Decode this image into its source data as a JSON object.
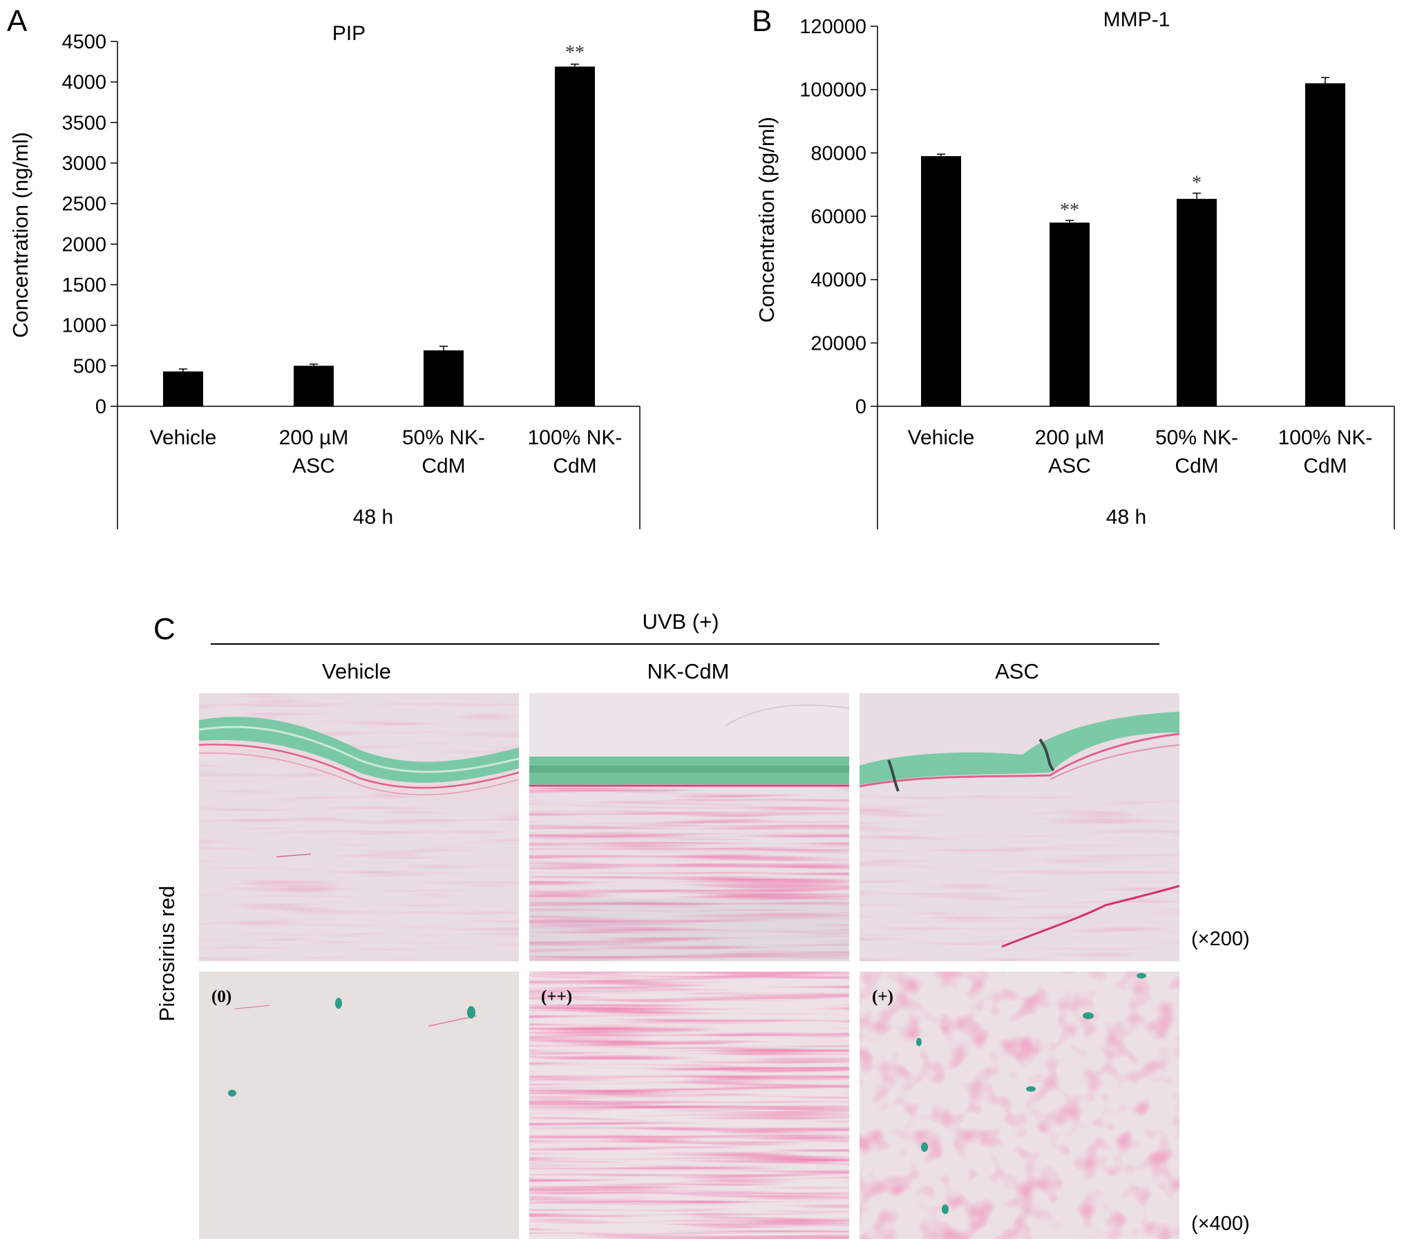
{
  "chart_data": [
    {
      "panel": "A",
      "type": "bar",
      "title": "PIP",
      "ylabel": "Concentration (ng/ml)",
      "xlabel": "48 h",
      "categories": [
        [
          "Vehicle"
        ],
        [
          "200 µM",
          "ASC"
        ],
        [
          "50% NK-",
          "CdM"
        ],
        [
          "100% NK-",
          "CdM"
        ]
      ],
      "values": [
        430,
        500,
        690,
        4190
      ],
      "errors": [
        30,
        20,
        50,
        30
      ],
      "significance": [
        "",
        "",
        "",
        "**"
      ],
      "ylim": [
        0,
        4500
      ],
      "yticks": [
        "0",
        "500",
        "1000",
        "1500",
        "2000",
        "2500",
        "3000",
        "3500",
        "4000",
        "4500"
      ],
      "grid": false
    },
    {
      "panel": "B",
      "type": "bar",
      "title": "MMP-1",
      "ylabel": "Concentration (pg/ml)",
      "xlabel": "48 h",
      "categories": [
        [
          "Vehicle"
        ],
        [
          "200 µM",
          "ASC"
        ],
        [
          "50% NK-",
          "CdM"
        ],
        [
          "100% NK-",
          "CdM"
        ]
      ],
      "values": [
        79000,
        58000,
        65500,
        102000
      ],
      "errors": [
        600,
        700,
        1800,
        1800
      ],
      "significance": [
        "",
        "**",
        "*",
        ""
      ],
      "ylim": [
        0,
        120000
      ],
      "yticks": [
        "0",
        "20000",
        "40000",
        "60000",
        "80000",
        "100000",
        "120000"
      ],
      "grid": false
    }
  ],
  "panel_c": {
    "letter": "C",
    "group_label": "UVB (+)",
    "columns": [
      "Vehicle",
      "NK-CdM",
      "ASC"
    ],
    "row_label": "Picrosirius red",
    "magnifications": [
      "(×200)",
      "(×400)"
    ],
    "scores": [
      "(0)",
      "(++)",
      "(+)"
    ]
  },
  "colors": {
    "bar": "#000000",
    "tissue_background": "#e9dde4",
    "collagen": "#e0407c",
    "stratum_corneum": "#6fc6a3",
    "cell": "#2c9c86"
  }
}
